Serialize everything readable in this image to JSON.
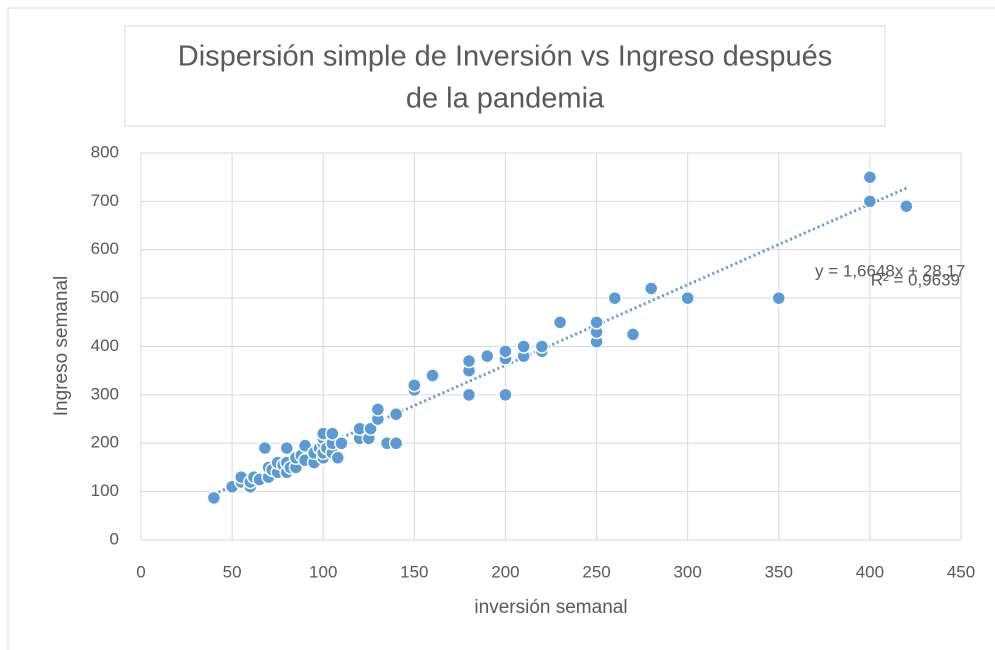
{
  "chart_data": {
    "type": "scatter",
    "title": [
      "Dispersión simple de Inversión vs Ingreso después",
      "de la pandemia"
    ],
    "x_label": "inversión semanal",
    "y_label": "Ingreso semanal",
    "x": [
      40,
      50,
      55,
      55,
      60,
      60,
      62,
      65,
      68,
      70,
      70,
      72,
      75,
      75,
      78,
      80,
      80,
      80,
      82,
      85,
      85,
      88,
      90,
      90,
      95,
      95,
      98,
      100,
      100,
      100,
      100,
      100,
      102,
      105,
      105,
      105,
      108,
      110,
      120,
      120,
      125,
      126,
      130,
      130,
      135,
      140,
      140,
      150,
      150,
      160,
      180,
      180,
      180,
      190,
      200,
      200,
      200,
      210,
      210,
      220,
      220,
      230,
      250,
      250,
      250,
      260,
      270,
      280,
      300,
      350,
      400,
      400,
      420
    ],
    "values": [
      87,
      110,
      120,
      130,
      110,
      120,
      130,
      125,
      190,
      130,
      150,
      145,
      140,
      160,
      155,
      140,
      160,
      190,
      150,
      150,
      170,
      175,
      165,
      195,
      160,
      180,
      190,
      170,
      180,
      200,
      210,
      220,
      190,
      180,
      200,
      220,
      170,
      200,
      210,
      230,
      210,
      230,
      250,
      270,
      200,
      200,
      260,
      310,
      320,
      340,
      300,
      350,
      370,
      380,
      300,
      375,
      390,
      380,
      400,
      390,
      400,
      450,
      410,
      430,
      450,
      500,
      425,
      520,
      500,
      500,
      700,
      750,
      690
    ],
    "color": "#5b9bd5",
    "trendline": {
      "x": [
        40,
        420
      ],
      "values": [
        94.8,
        727.4
      ],
      "color": "#5b9bd5",
      "label": [
        "y = 1,6648x + 28,17",
        "R² = 0,9639"
      ]
    },
    "xlim": [
      0,
      450
    ],
    "xticks": [
      0,
      50,
      100,
      150,
      200,
      250,
      300,
      350,
      400,
      450
    ],
    "ylim": [
      0,
      800
    ],
    "yticks": [
      0,
      100,
      200,
      300,
      400,
      500,
      600,
      700,
      800
    ],
    "grid": true
  }
}
